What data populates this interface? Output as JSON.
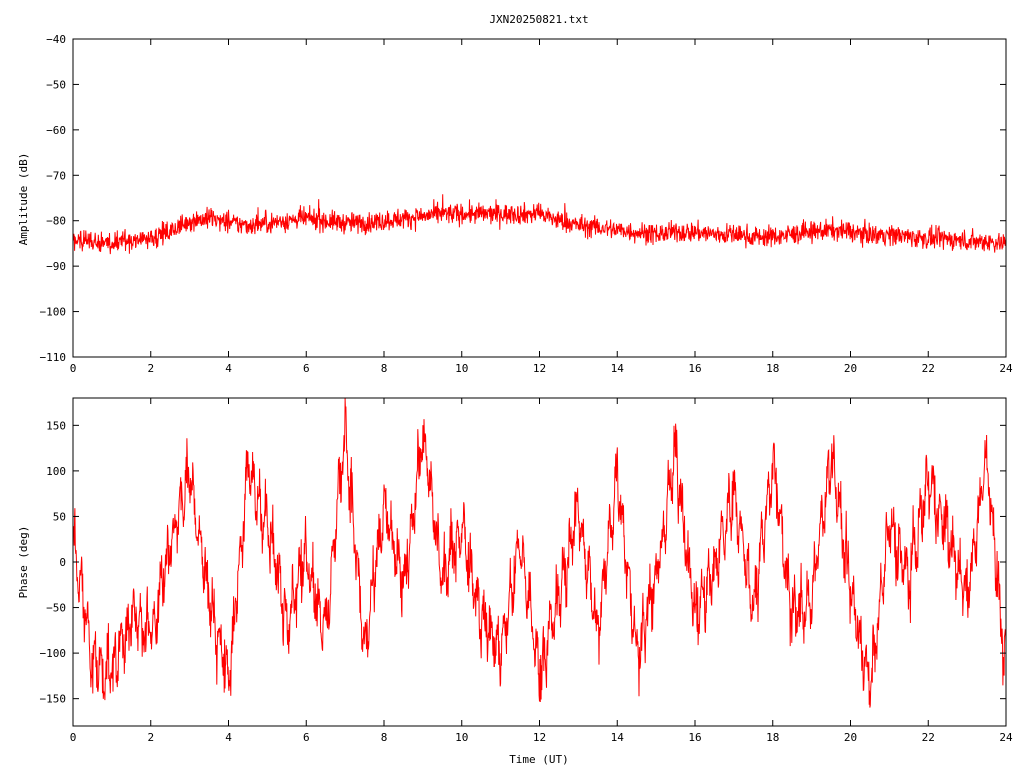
{
  "chart_data": [
    {
      "type": "line",
      "title": "JXN20250821.txt",
      "xlabel": "",
      "ylabel": "Amplitude (dB)",
      "xlim": [
        0,
        24
      ],
      "ylim": [
        -110,
        -40
      ],
      "xticks": [
        "0",
        "2",
        "4",
        "6",
        "8",
        "10",
        "12",
        "14",
        "16",
        "18",
        "20",
        "22",
        "24"
      ],
      "yticks": [
        "-40",
        "-50",
        "-60",
        "-70",
        "-80",
        "-90",
        "-100",
        "-110"
      ],
      "grid": false,
      "line_color": "#ff0000",
      "series": [
        {
          "x": [
            0,
            0.5,
            1,
            1.5,
            2,
            2.5,
            3,
            3.5,
            4,
            4.5,
            5,
            5.5,
            6,
            6.5,
            7,
            7.5,
            8,
            8.5,
            9,
            9.5,
            10,
            10.5,
            11,
            11.5,
            12,
            12.5,
            13,
            13.5,
            14,
            14.5,
            15,
            15.5,
            16,
            16.5,
            17,
            17.5,
            18,
            18.5,
            19,
            19.5,
            20,
            20.5,
            21,
            21.5,
            22,
            22.5,
            23,
            23.5,
            24
          ],
          "y": [
            -84,
            -84.5,
            -85,
            -84.5,
            -83.5,
            -82.5,
            -80,
            -79.5,
            -80.5,
            -81,
            -80.5,
            -80,
            -79.5,
            -80,
            -80.5,
            -80.5,
            -80,
            -79.5,
            -79,
            -78.5,
            -78.5,
            -78.5,
            -78.5,
            -78.5,
            -78.5,
            -80,
            -81,
            -81.5,
            -82,
            -82.5,
            -83,
            -82.5,
            -82.5,
            -83,
            -83,
            -83.5,
            -83.5,
            -83,
            -82.5,
            -82,
            -82.5,
            -83,
            -83,
            -83.5,
            -84,
            -84,
            -84.5,
            -84.5,
            -85
          ],
          "spread_db": 2.5
        }
      ]
    },
    {
      "type": "line",
      "title": "",
      "xlabel": "Time (UT)",
      "ylabel": "Phase (deg)",
      "xlim": [
        0,
        24
      ],
      "ylim": [
        -180,
        180
      ],
      "xticks": [
        "0",
        "2",
        "4",
        "6",
        "8",
        "10",
        "12",
        "14",
        "16",
        "18",
        "20",
        "22",
        "24"
      ],
      "yticks": [
        "150",
        "100",
        "50",
        "0",
        "-50",
        "-100",
        "-150"
      ],
      "grid": false,
      "line_color": "#ff0000",
      "series": [
        {
          "x": [
            0,
            0.5,
            1,
            1.5,
            2,
            2.5,
            3,
            3.5,
            4,
            4.5,
            5,
            5.5,
            6,
            6.5,
            7,
            7.5,
            8,
            8.5,
            9,
            9.5,
            10,
            10.5,
            11,
            11.5,
            12,
            12.5,
            13,
            13.5,
            14,
            14.5,
            15,
            15.5,
            16,
            16.5,
            17,
            17.5,
            18,
            18.5,
            19,
            19.5,
            20,
            20.5,
            21,
            21.5,
            22,
            22.5,
            23,
            23.5,
            24
          ],
          "y": [
            30,
            -110,
            -120,
            -60,
            -80,
            20,
            100,
            -40,
            -130,
            100,
            40,
            -60,
            10,
            -80,
            150,
            -100,
            60,
            -30,
            140,
            -20,
            40,
            -60,
            -100,
            20,
            -120,
            -40,
            60,
            -80,
            100,
            -100,
            -20,
            120,
            -60,
            -10,
            80,
            -50,
            110,
            -60,
            -40,
            120,
            -30,
            -140,
            40,
            -20,
            90,
            30,
            -40,
            120,
            -130
          ],
          "wraps": true
        }
      ]
    }
  ]
}
